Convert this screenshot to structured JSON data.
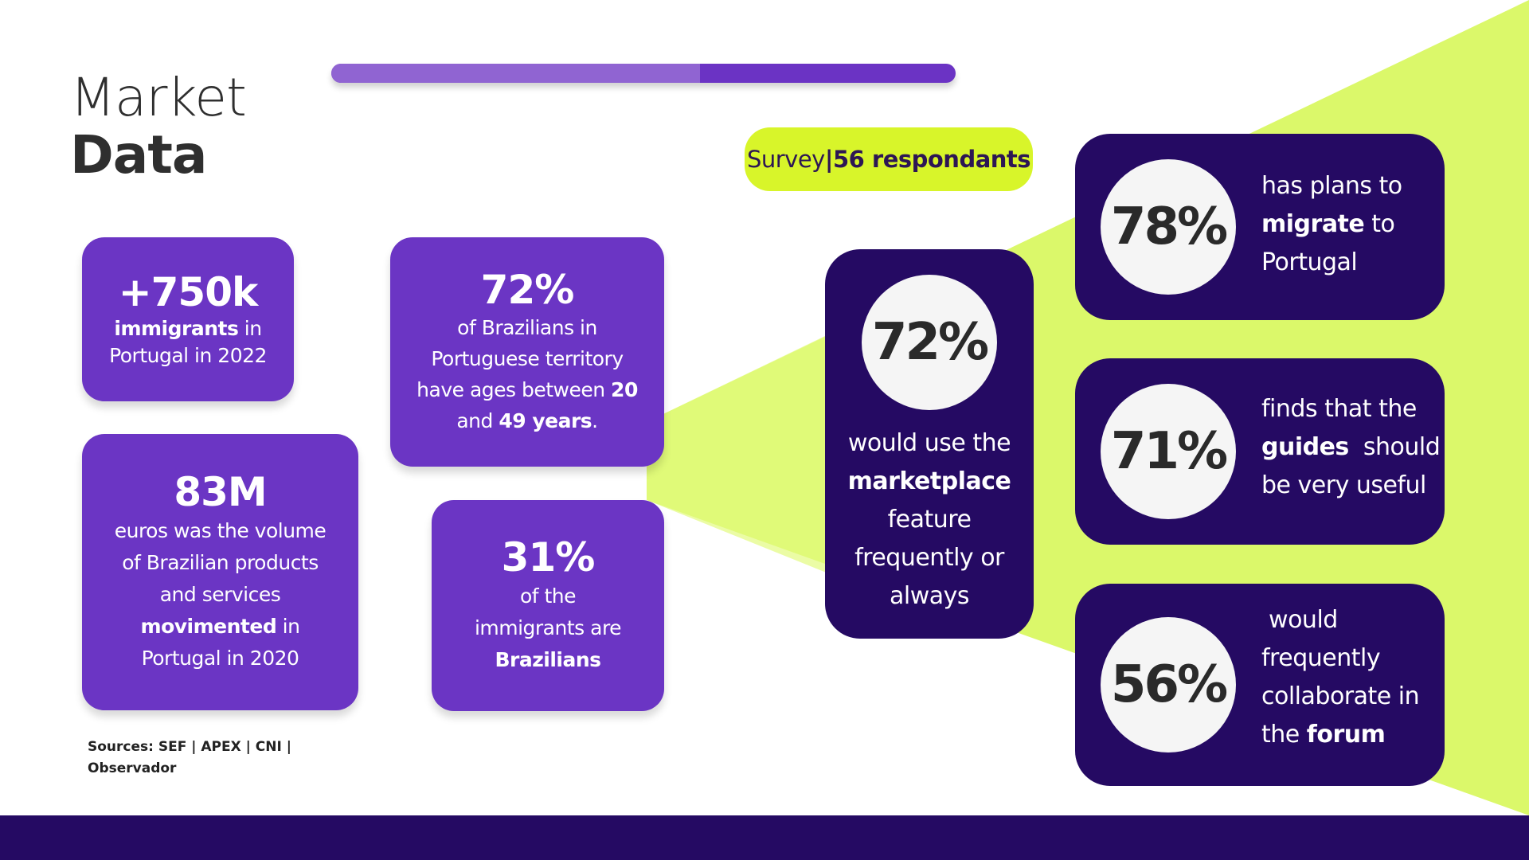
{
  "title": {
    "line1": "Market",
    "line2": "Data"
  },
  "progress": {
    "fraction": 0.59
  },
  "survey": {
    "label": "Survey",
    "separator": " | ",
    "count": "56 respondants"
  },
  "stats": {
    "immigrants": {
      "value": "+750k",
      "bold": "immigrants",
      "text1": " in",
      "text2": "Portugal in 2022"
    },
    "ages": {
      "value": "72%",
      "line1": "of Brazilians in",
      "line2": "Portuguese territory",
      "line3": "have ages between ",
      "bold1": "20",
      "line4": "and ",
      "bold2": "49 years",
      "end": "."
    },
    "volume": {
      "value": "83M",
      "line1": "euros was the volume",
      "line2": "of Brazilian products",
      "line3": "and services",
      "bold": "movimented",
      "line4": " in",
      "line5": "Portugal in 2020"
    },
    "brazilians": {
      "value": "31%",
      "line1": "of the",
      "line2": "immigrants are",
      "bold": "Brazilians"
    }
  },
  "survey_results": {
    "marketplace": {
      "value": "72%",
      "line1": "would use the",
      "bold": "marketplace",
      "line2": "feature",
      "line3": "frequently or",
      "line4": "always"
    },
    "migrate": {
      "value": "78%",
      "line1": "has plans to",
      "bold": "migrate",
      "line2": " to",
      "line3": "Portugal"
    },
    "guides": {
      "value": "71%",
      "line1": "finds that the",
      "bold": "guides",
      "line2": "  should",
      "line3": "be very useful"
    },
    "forum": {
      "value": "56%",
      "line1": " would",
      "line2": "frequently",
      "line3": "collaborate in",
      "line4": "the ",
      "bold": "forum"
    }
  },
  "sources": {
    "line1": "Sources: SEF | APEX | CNI |",
    "line2": "Observador"
  },
  "colors": {
    "purple": "#6b35c4",
    "dark_purple": "#250a63",
    "lime": "#d8f52a"
  }
}
